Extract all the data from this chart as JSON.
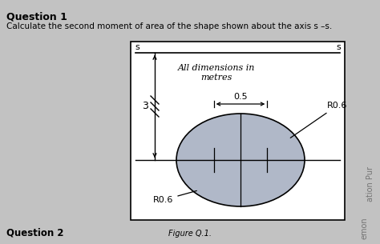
{
  "title": "Question 1",
  "subtitle": "Calculate the second moment of area of the shape shown about the axis s –s.",
  "figure_label": "Figure Q.1.",
  "question2_label": "Question 2",
  "background_color": "#c2c2c2",
  "box_bg": "#ffffff",
  "box_edge": "#000000",
  "ellipse_fill": "#b0b8c8",
  "ellipse_edge": "#000000",
  "axis_line_color": "#000000",
  "text_color": "#000000",
  "all_dims_text": "All dimensions in\nmetres",
  "radius_label_bl": "R0.6",
  "radius_label_r": "R0.6",
  "dim_label": "0.5",
  "height_label": "3",
  "s_label": "s",
  "watermark": "ation Pur",
  "watermark2": "emon"
}
